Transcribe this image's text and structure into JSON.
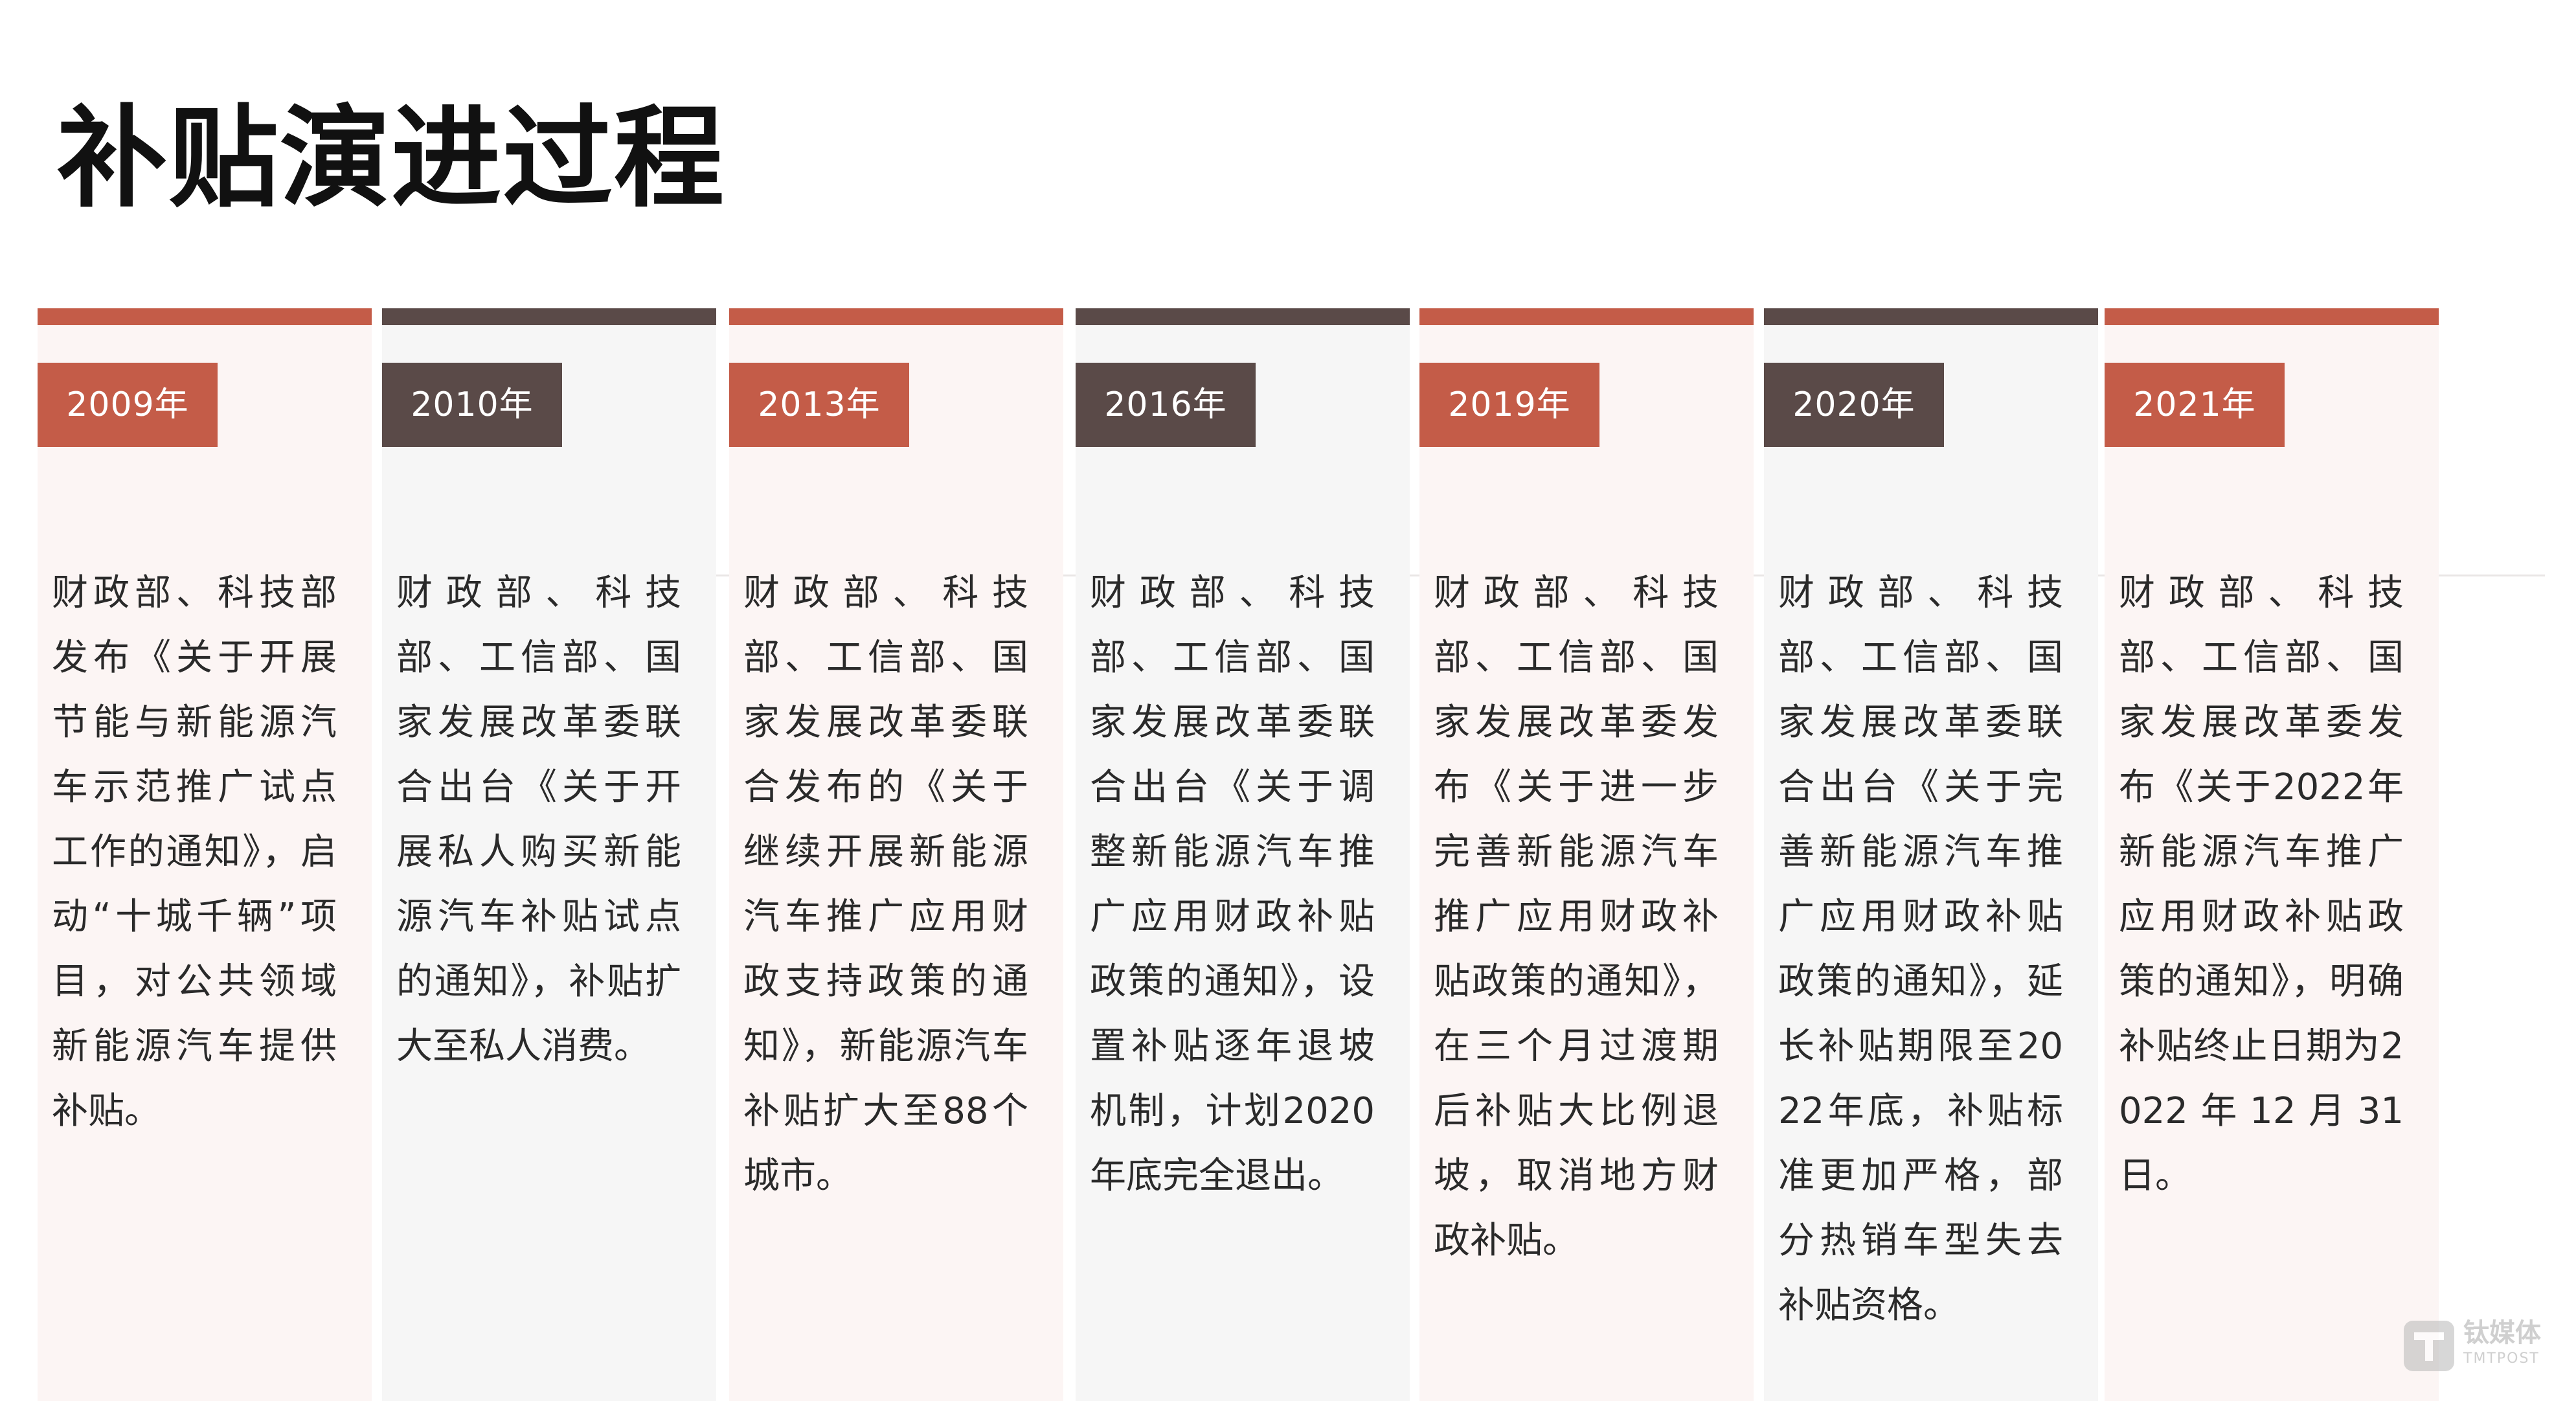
{
  "title": "补贴演进过程",
  "colors": {
    "accent_red": "#c45c48",
    "accent_brown": "#5a4a48",
    "panel_light": "#fcf5f4",
    "panel_gray": "#f6f6f6"
  },
  "timeline": [
    {
      "year": "2009年",
      "theme": "red",
      "text": "财政部、科技部发布《关于开展节能与新能源汽车示范推广试点工作的通知》，启动“十城千辆”项目，对公共领域新能源汽车提供补贴。"
    },
    {
      "year": "2010年",
      "theme": "brown",
      "text": "财政部、科技部、工信部、国家发展改革委联合出台《关于开展私人购买新能源汽车补贴试点的通知》，补贴扩大至私人消费。"
    },
    {
      "year": "2013年",
      "theme": "red",
      "text": "财政部、科技部、工信部、国家发展改革委联合发布的《关于继续开展新能源汽车推广应用财政支持政策的通知》，新能源汽车补贴扩大至88个城市。"
    },
    {
      "year": "2016年",
      "theme": "brown",
      "text": "财政部、科技部、工信部、国家发展改革委联合出台《关于调整新能源汽车推广应用财政补贴政策的通知》，设置补贴逐年退坡机制，计划2020年底完全退出。"
    },
    {
      "year": "2019年",
      "theme": "red",
      "text": "财政部、科技部、工信部、国家发展改革委发布《关于进一步完善新能源汽车推广应用财政补贴政策的通知》，在三个月过渡期后补贴大比例退坡，取消地方财政补贴。"
    },
    {
      "year": "2020年",
      "theme": "brown",
      "text": "财政部、科技部、工信部、国家发展改革委联合出台《关于完善新能源汽车推广应用财政补贴政策的通知》，延长补贴期限至2022年底，补贴标准更加严格，部分热销车型失去补贴资格。"
    },
    {
      "year": "2021年",
      "theme": "red",
      "text": "财政部、科技部、工信部、国家发展改革委发布《关于2022年新能源汽车推广应用财政补贴政策的通知》，明确补贴终止日期为2022年12月31日。"
    }
  ],
  "watermark": {
    "icon": "tmtpost-logo-icon",
    "name": "钛媒体",
    "sub": "TMTPOST"
  }
}
